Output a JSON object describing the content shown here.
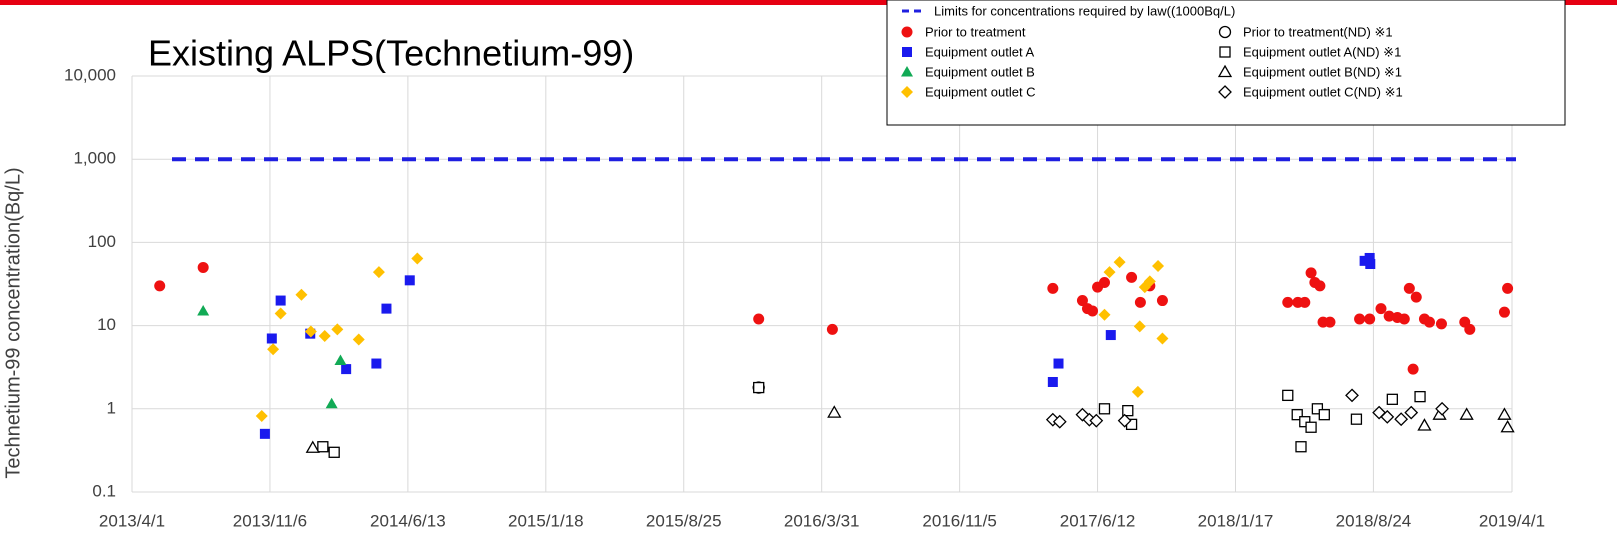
{
  "chart_data": {
    "type": "scatter",
    "title": "Existing ALPS(Technetium-99)",
    "y_label": "Technetium-99 concentration(Bq/L)",
    "log_y": true,
    "grid": true,
    "xlim": [
      "2013/4/1",
      "2019/4/1"
    ],
    "xticks": [
      "2013/4/1",
      "2013/11/6",
      "2014/6/13",
      "2015/1/18",
      "2015/8/25",
      "2016/3/31",
      "2016/11/5",
      "2017/6/12",
      "2018/1/17",
      "2018/8/24",
      "2019/4/1"
    ],
    "ylim": [
      0.1,
      10000
    ],
    "yticks": [
      0.1,
      1,
      10,
      100,
      {
        "value": 1000,
        "label": "1,000"
      },
      {
        "value": 10000,
        "label": "10,000"
      }
    ],
    "limit": {
      "name": "Limits for concentrations required by law((1000Bq/L)",
      "value": 1000,
      "color": "#1f1fe0"
    },
    "series": [
      {
        "name": "Prior to treatment",
        "color": "#ee1111",
        "marker": "circle",
        "filled": true,
        "x": [
          "2013/5/15",
          "2013/7/23",
          "2015/12/22",
          "2016/4/17",
          "2017/4/2",
          "2017/5/19",
          "2017/5/27",
          "2017/6/4",
          "2017/6/12",
          "2017/6/23",
          "2017/8/5",
          "2017/8/19",
          "2017/9/3",
          "2017/9/23",
          "2018/4/10",
          "2018/4/26",
          "2018/5/7",
          "2018/5/17",
          "2018/5/23",
          "2018/5/31",
          "2018/6/5",
          "2018/6/16",
          "2018/8/2",
          "2018/8/18",
          "2018/9/5",
          "2018/9/18",
          "2018/10/1",
          "2018/10/12",
          "2018/10/20",
          "2018/10/26",
          "2018/10/31",
          "2018/11/13",
          "2018/11/21",
          "2018/12/10",
          "2019/1/16",
          "2019/1/24",
          "2019/3/20",
          "2019/3/25"
        ],
        "values": [
          30,
          50,
          12,
          9,
          28,
          20,
          16,
          15,
          29,
          33,
          38,
          19,
          30,
          20,
          19,
          19,
          19,
          43,
          33,
          30,
          11,
          11,
          12,
          12,
          16,
          13,
          12.5,
          12,
          28,
          3,
          22,
          12,
          11,
          10.5,
          11,
          9,
          14.5,
          28
        ]
      },
      {
        "name": "Equipment outlet A",
        "color": "#1a1aee",
        "marker": "square",
        "filled": true,
        "x": [
          "2013/10/29",
          "2013/11/9",
          "2013/11/23",
          "2014/1/9",
          "2014/3/7",
          "2014/4/24",
          "2014/5/10",
          "2014/6/16",
          "2017/4/2",
          "2017/4/11",
          "2017/7/3",
          "2018/8/10",
          "2018/8/18",
          "2018/8/19"
        ],
        "values": [
          0.5,
          7,
          20,
          8,
          3,
          3.5,
          16,
          35,
          2.1,
          3.5,
          7.7,
          60,
          65,
          55
        ]
      },
      {
        "name": "Equipment outlet B",
        "color": "#11aa55",
        "marker": "triangle",
        "filled": true,
        "x": [
          "2013/7/23",
          "2014/2/12",
          "2014/2/26"
        ],
        "values": [
          15,
          1.15,
          3.8
        ]
      },
      {
        "name": "Equipment outlet C",
        "color": "#ffc000",
        "marker": "diamond",
        "filled": true,
        "x": [
          "2013/10/24",
          "2013/11/11",
          "2013/11/23",
          "2013/12/26",
          "2014/1/10",
          "2014/2/1",
          "2014/2/21",
          "2014/3/27",
          "2014/4/28",
          "2014/6/28",
          "2017/6/23",
          "2017/7/1",
          "2017/7/17",
          "2017/8/15",
          "2017/8/18",
          "2017/8/26",
          "2017/9/3",
          "2017/9/16",
          "2017/9/23"
        ],
        "values": [
          0.82,
          5.2,
          14,
          23.5,
          8.5,
          7.5,
          9,
          6.8,
          44,
          64,
          13.5,
          44,
          58,
          1.6,
          9.8,
          29,
          34,
          52,
          7
        ]
      },
      {
        "name": "Prior to treatment(ND)  ※1",
        "color": "#000000",
        "marker": "circle",
        "filled": false,
        "x": [
          "2015/12/22"
        ],
        "values": [
          1.8
        ]
      },
      {
        "name": "Equipment outlet A(ND)  ※1",
        "color": "#000000",
        "marker": "square",
        "filled": false,
        "x": [
          "2014/1/29",
          "2014/2/16",
          "2015/12/22",
          "2017/6/23",
          "2017/7/30",
          "2017/8/5",
          "2018/4/10",
          "2018/4/25",
          "2018/5/1",
          "2018/5/7",
          "2018/5/17",
          "2018/5/27",
          "2018/6/7",
          "2018/7/28",
          "2018/9/23",
          "2018/11/6"
        ],
        "values": [
          0.35,
          0.3,
          1.8,
          1.0,
          0.95,
          0.65,
          1.45,
          0.85,
          0.35,
          0.7,
          0.6,
          1.0,
          0.85,
          0.75,
          1.3,
          1.4
        ]
      },
      {
        "name": "Equipment outlet B(ND)  ※1",
        "color": "#000000",
        "marker": "triangle",
        "filled": false,
        "x": [
          "2014/1/13",
          "2016/4/20",
          "2018/11/13",
          "2018/12/7",
          "2019/1/19",
          "2019/3/20",
          "2019/3/25"
        ],
        "values": [
          0.34,
          0.9,
          0.63,
          0.85,
          0.85,
          0.85,
          0.6
        ]
      },
      {
        "name": "Equipment outlet C(ND)  ※1",
        "color": "#000000",
        "marker": "diamond",
        "filled": false,
        "x": [
          "2017/4/2",
          "2017/4/13",
          "2017/5/19",
          "2017/5/30",
          "2017/6/10",
          "2017/7/25",
          "2018/7/21",
          "2018/9/2",
          "2018/9/15",
          "2018/10/7",
          "2018/10/23",
          "2018/12/11"
        ],
        "values": [
          0.74,
          0.7,
          0.85,
          0.74,
          0.72,
          0.72,
          1.45,
          0.9,
          0.8,
          0.75,
          0.9,
          1.0
        ]
      }
    ]
  }
}
